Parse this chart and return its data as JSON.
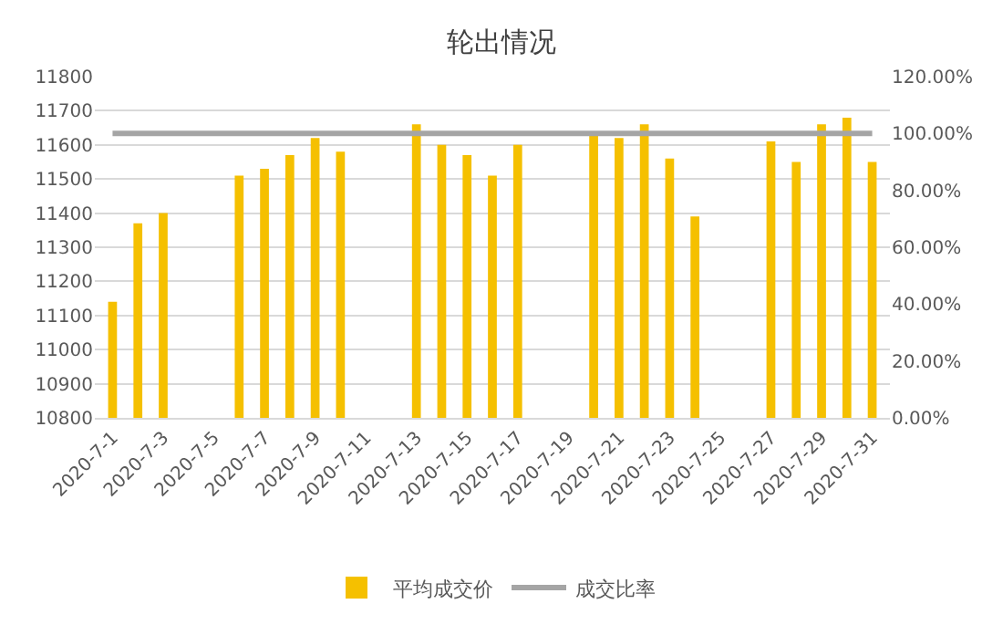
{
  "chart_data": {
    "type": "bar",
    "title": "轮出情况",
    "categories": [
      "2020-7-1",
      null,
      "2020-7-3",
      null,
      "2020-7-5",
      null,
      "2020-7-7",
      null,
      "2020-7-9",
      null,
      "2020-7-11",
      null,
      "2020-7-13",
      null,
      "2020-7-15",
      null,
      "2020-7-17",
      null,
      "2020-7-19",
      null,
      "2020-7-21",
      null,
      "2020-7-23",
      null,
      "2020-7-25",
      null,
      "2020-7-27",
      null,
      "2020-7-29",
      null,
      "2020-7-31"
    ],
    "series": [
      {
        "name": "平均成交价",
        "color": "#f5c000",
        "values": [
          11140,
          11370,
          11400,
          null,
          null,
          11510,
          11530,
          11570,
          11620,
          11580,
          null,
          null,
          11660,
          11600,
          11570,
          11510,
          11600,
          null,
          null,
          11630,
          11620,
          11660,
          11560,
          11390,
          null,
          null,
          11610,
          11550,
          11660,
          11680,
          11550
        ]
      },
      {
        "name": "成交比率",
        "type": "line",
        "axis": "y2",
        "color": "#a5a5a5",
        "values": [
          100,
          100,
          100,
          100,
          100,
          100,
          100,
          100,
          100,
          100,
          100,
          100,
          100,
          100,
          100,
          100,
          100,
          100,
          100,
          100,
          100,
          100,
          100,
          100,
          100,
          100,
          100,
          100,
          100,
          100,
          100
        ]
      }
    ],
    "ylim": [
      10800,
      11800
    ],
    "yticks": [
      10800,
      10900,
      11000,
      11100,
      11200,
      11300,
      11400,
      11500,
      11600,
      11700,
      11800
    ],
    "y2lim": [
      0,
      120
    ],
    "y2ticks": [
      {
        "value": 0,
        "label": "0.00%"
      },
      {
        "value": 20,
        "label": "20.00%"
      },
      {
        "value": 40,
        "label": "40.00%"
      },
      {
        "value": 60,
        "label": "60.00%"
      },
      {
        "value": 80,
        "label": "80.00%"
      },
      {
        "value": 100,
        "label": "100.00%"
      },
      {
        "value": 120,
        "label": "120.00%"
      }
    ],
    "grid": "y",
    "legend": "bottom",
    "marker": "none",
    "line_style": "solid"
  }
}
